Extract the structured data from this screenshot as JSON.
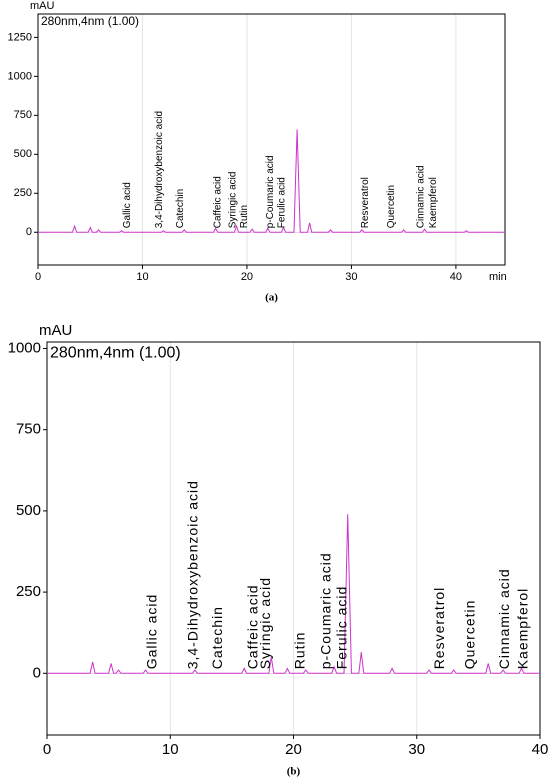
{
  "chart_data": [
    {
      "type": "line",
      "y_label": "mAU",
      "x_label": "min",
      "caption": "(a)",
      "series": [
        {
          "name": "280nm,4nm (1.00)",
          "color": "#cc33cc",
          "values": [
            0,
            0,
            40,
            0,
            0,
            30,
            0,
            0,
            15,
            0,
            0,
            10,
            0,
            0,
            10,
            0,
            0,
            15,
            0,
            0,
            25,
            0,
            0,
            40,
            0,
            0,
            20,
            0,
            0,
            25,
            0,
            0,
            30,
            0,
            0,
            660,
            0,
            0,
            60,
            0,
            0,
            15,
            0,
            0,
            15,
            0,
            0,
            15,
            0,
            0,
            20,
            0,
            0,
            10,
            0,
            0
          ]
        }
      ],
      "x": [
        0,
        3.3,
        3.5,
        3.7,
        4.8,
        5,
        5.2,
        5.6,
        5.8,
        6,
        7.8,
        8,
        8.2,
        11.8,
        12,
        12.2,
        13.8,
        14,
        14.2,
        16.8,
        17,
        17.2,
        18.8,
        19,
        19.2,
        20.3,
        20.5,
        20.7,
        21.8,
        22,
        22.2,
        23.3,
        23.5,
        23.7,
        24.5,
        24.8,
        25.1,
        25.8,
        26,
        26.2,
        27.8,
        28,
        28.2,
        30.8,
        31,
        31.2,
        34.8,
        35,
        35.2,
        36.8,
        37,
        37.2,
        40.8,
        41,
        41.2,
        44.7
      ],
      "xlim": [
        0,
        44.7
      ],
      "xticks": [
        0,
        10,
        20,
        30,
        40
      ],
      "ylim": [
        -210,
        1400
      ],
      "yticks": [
        0,
        250,
        500,
        750,
        1000,
        1250
      ],
      "grid": "x",
      "annotations": [
        {
          "text": "Gallic acid",
          "x": 8.2
        },
        {
          "text": "3,4-Dihydroxybenzoic acid",
          "x": 11.3
        },
        {
          "text": "Catechin",
          "x": 13.3
        },
        {
          "text": "Caffeic acid",
          "x": 16.9
        },
        {
          "text": "Syringic acid",
          "x": 18.3
        },
        {
          "text": "Rutin",
          "x": 19.4
        },
        {
          "text": "p-Coumaric acid",
          "x": 21.9
        },
        {
          "text": "Ferulic acid",
          "x": 23.0
        },
        {
          "text": "Resveratrol",
          "x": 31.0
        },
        {
          "text": "Quercetin",
          "x": 33.5
        },
        {
          "text": "Cinnamic acid",
          "x": 36.3
        },
        {
          "text": "Kaempferol",
          "x": 37.5
        }
      ]
    },
    {
      "type": "line",
      "y_label": "mAU",
      "caption": "(b)",
      "series": [
        {
          "name": "280nm,4nm (1.00)",
          "color": "#cc33cc",
          "values": [
            0,
            0,
            35,
            0,
            0,
            30,
            0,
            0,
            10,
            0,
            0,
            10,
            0,
            0,
            10,
            0,
            0,
            15,
            0,
            0,
            50,
            0,
            0,
            15,
            0,
            0,
            10,
            0,
            0,
            20,
            0,
            0,
            490,
            0,
            0,
            65,
            0,
            0,
            15,
            0,
            0,
            10,
            0,
            0,
            10,
            0,
            0,
            30,
            0,
            0,
            10,
            0,
            0,
            15,
            0,
            0
          ]
        }
      ],
      "x": [
        0,
        3.5,
        3.7,
        3.9,
        5,
        5.2,
        5.4,
        5.6,
        5.8,
        6,
        7.8,
        8,
        8.2,
        11.8,
        12,
        12.2,
        15.8,
        16,
        16.2,
        18,
        18.2,
        18.4,
        19.3,
        19.5,
        19.7,
        20.8,
        21,
        21.2,
        23.1,
        23.3,
        23.5,
        24.1,
        24.4,
        24.7,
        25.3,
        25.5,
        25.7,
        27.8,
        28,
        28.2,
        30.8,
        31,
        31.2,
        32.8,
        33,
        33.2,
        35.6,
        35.8,
        36,
        36.8,
        37,
        37.2,
        38.3,
        38.5,
        38.7,
        40
      ],
      "xlim": [
        0,
        40
      ],
      "xticks": [
        0,
        10,
        20,
        30,
        40
      ],
      "ylim": [
        -190,
        1020
      ],
      "yticks": [
        0,
        250,
        500,
        750,
        1000
      ],
      "grid": "x",
      "annotations": [
        {
          "text": "Gallic acid",
          "x": 8.2
        },
        {
          "text": "3,4-Dihydroxybenzoic acid",
          "x": 11.5
        },
        {
          "text": "Catechin",
          "x": 13.5
        },
        {
          "text": "Caffeic acid",
          "x": 16.4
        },
        {
          "text": "Syringic acid",
          "x": 17.4
        },
        {
          "text": "Rutin",
          "x": 20.2
        },
        {
          "text": "p-Coumaric acid",
          "x": 22.3
        },
        {
          "text": "Ferulic acid",
          "x": 23.6
        },
        {
          "text": "Resveratrol",
          "x": 31.5
        },
        {
          "text": "Quercetin",
          "x": 34.0
        },
        {
          "text": "Cinnamic acid",
          "x": 36.8
        },
        {
          "text": "Kaempferol",
          "x": 38.3
        }
      ]
    }
  ]
}
